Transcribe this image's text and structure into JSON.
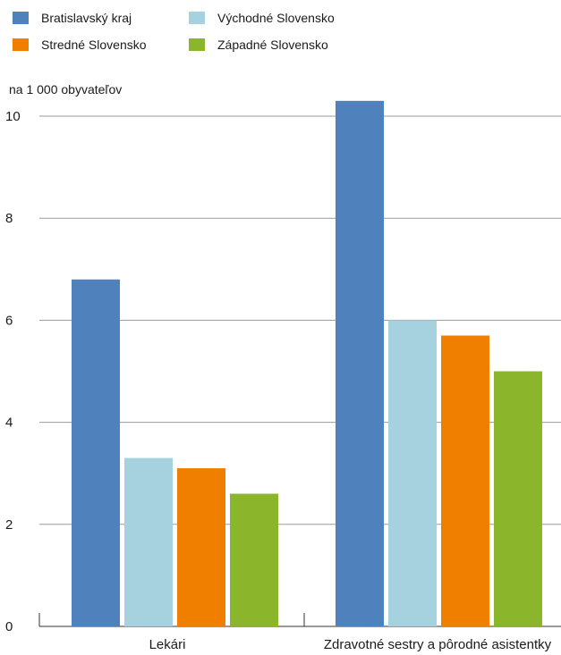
{
  "chart_data": {
    "type": "bar",
    "ylabel": "na 1 000 obyvateľov",
    "categories": [
      "Lekári",
      "Zdravotné sestry a pôrodné asistentky"
    ],
    "series": [
      {
        "name": "Bratislavský kraj",
        "color": "#4f81bd",
        "values": [
          6.8,
          10.3
        ]
      },
      {
        "name": "Východné Slovensko",
        "color": "#a5d2de",
        "values": [
          3.3,
          6.0
        ]
      },
      {
        "name": "Stredné Slovensko",
        "color": "#f07f00",
        "values": [
          3.1,
          5.7
        ]
      },
      {
        "name": "Západné Slovensko",
        "color": "#8bb52b",
        "values": [
          2.6,
          5.0
        ]
      }
    ],
    "ylim": [
      0,
      10
    ],
    "yticks": [
      "0",
      "2",
      "4",
      "6",
      "8",
      "10"
    ],
    "grid": true,
    "legend_position": "top-left"
  }
}
